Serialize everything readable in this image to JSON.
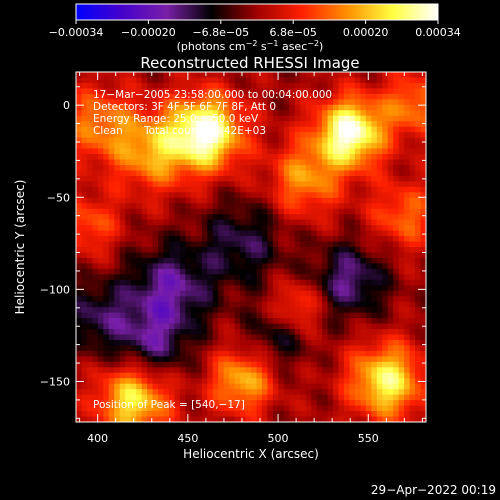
{
  "colorbar": {
    "tick_labels": [
      "−0.00034",
      "−0.00020",
      "−6.8e−05",
      "6.8e−05",
      "0.00020",
      "0.00034"
    ],
    "unit_main": "(photons cm",
    "unit_sup1": "−2",
    "unit_mid": " s",
    "unit_sup2": "−1",
    "unit_mid2": " asec",
    "unit_sup3": "−2",
    "unit_end": ")",
    "range": [
      -0.00034,
      0.00034
    ],
    "colors": [
      "#0000ff",
      "#4400cc",
      "#7a1fa8",
      "#000000",
      "#a00000",
      "#ff2000",
      "#ff9000",
      "#ffff40",
      "#ffffff"
    ]
  },
  "chart_data": {
    "type": "heatmap",
    "title": "Reconstructed RHESSI Image",
    "xlabel": "Heliocentric X (arcsec)",
    "ylabel": "Heliocentric Y (arcsec)",
    "xlim": [
      388,
      582
    ],
    "ylim": [
      -172,
      18
    ],
    "x_ticks": [
      400,
      450,
      500,
      550
    ],
    "y_ticks": [
      0,
      -50,
      -100,
      -150
    ],
    "annotations": {
      "time_range": "17−Mar−2005 23:58:00.000 to 00:04:00.000",
      "detectors": "Detectors: 3F 4F 5F 6F 7F 8F, Att 0",
      "energy": "Energy Range: 25.0 − 50.0 keV",
      "clean": "Clean",
      "total_counts": "Total counts: 6.42E+03",
      "peak": "Position of Peak = [540,−17]"
    },
    "peak_position": [
      540,
      -17
    ],
    "sources": [
      {
        "x": 460,
        "y": -15,
        "amp": 1.0,
        "sigma": 14
      },
      {
        "x": 540,
        "y": -15,
        "amp": 1.0,
        "sigma": 13
      },
      {
        "x": 430,
        "y": -25,
        "amp": 0.55,
        "sigma": 15
      },
      {
        "x": 400,
        "y": -10,
        "amp": 0.45,
        "sigma": 14
      },
      {
        "x": 515,
        "y": -40,
        "amp": 0.5,
        "sigma": 14
      },
      {
        "x": 575,
        "y": 0,
        "amp": 0.45,
        "sigma": 12
      },
      {
        "x": 570,
        "y": -60,
        "amp": 0.4,
        "sigma": 13
      },
      {
        "x": 395,
        "y": -65,
        "amp": 0.35,
        "sigma": 12
      },
      {
        "x": 420,
        "y": -160,
        "amp": 0.75,
        "sigma": 14
      },
      {
        "x": 480,
        "y": -150,
        "amp": 0.6,
        "sigma": 12
      },
      {
        "x": 560,
        "y": -150,
        "amp": 0.8,
        "sigma": 14
      },
      {
        "x": 510,
        "y": -110,
        "amp": 0.4,
        "sigma": 10
      },
      {
        "x": 440,
        "y": -100,
        "amp": -0.5,
        "sigma": 16
      },
      {
        "x": 480,
        "y": -75,
        "amp": -0.35,
        "sigma": 16
      },
      {
        "x": 540,
        "y": -95,
        "amp": -0.45,
        "sigma": 14
      },
      {
        "x": 430,
        "y": -130,
        "amp": -0.4,
        "sigma": 14
      },
      {
        "x": 400,
        "y": -115,
        "amp": -0.35,
        "sigma": 14
      },
      {
        "x": 500,
        "y": -125,
        "amp": -0.3,
        "sigma": 12
      }
    ]
  },
  "footer": {
    "timestamp": "29−Apr−2022 00:19"
  }
}
